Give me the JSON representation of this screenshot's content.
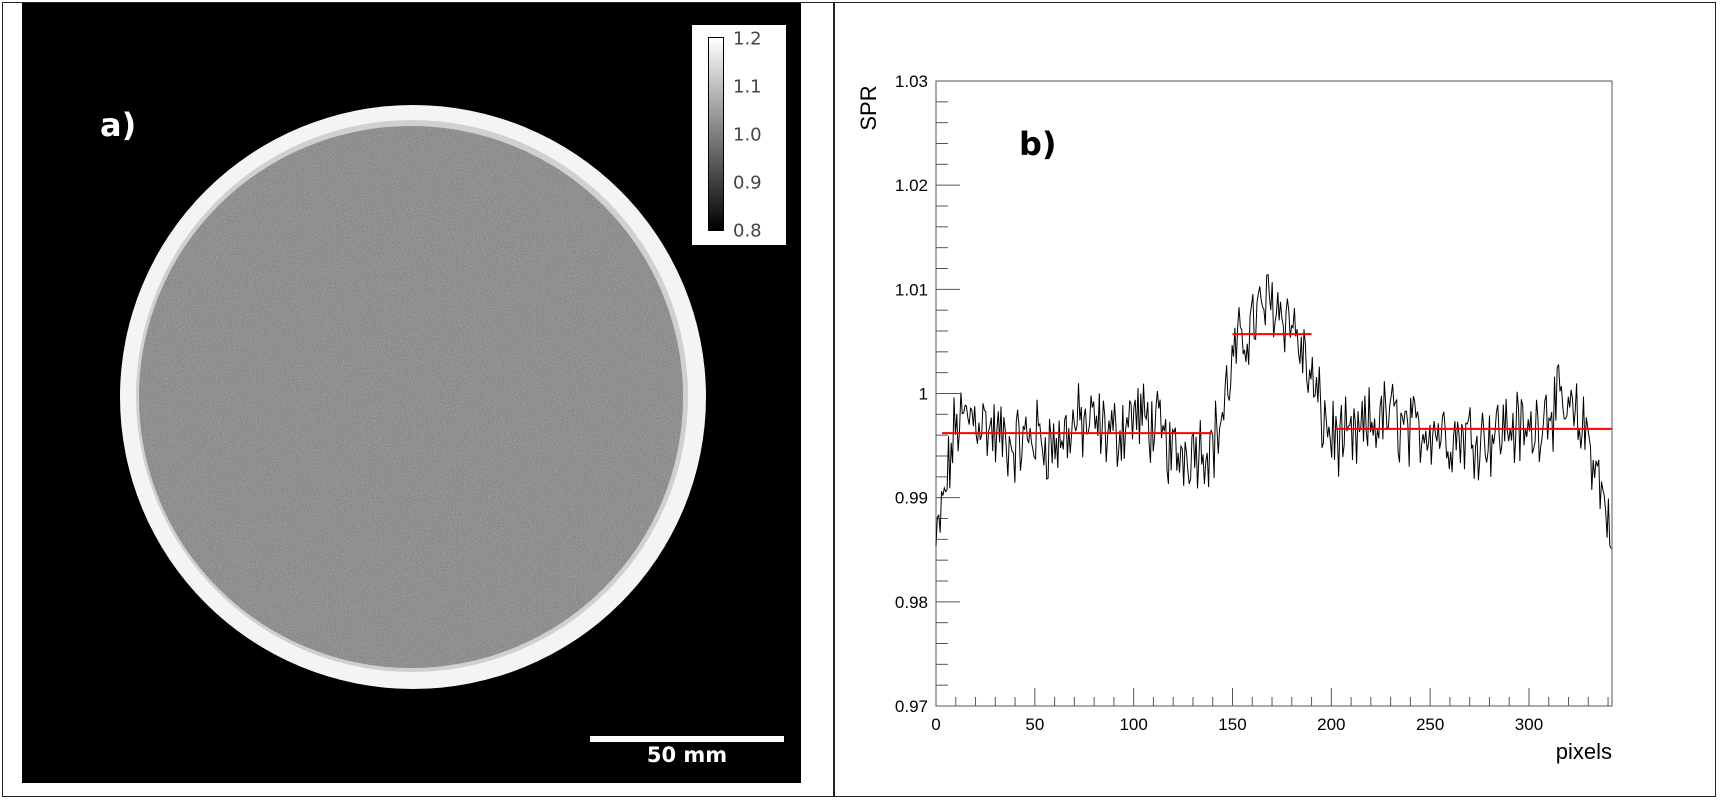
{
  "panel_a": {
    "label": "a)",
    "colorbar": {
      "ticks": [
        "1.2",
        "1.1",
        "1.0",
        "0.9",
        "0.8"
      ],
      "range": [
        0.8,
        1.2
      ]
    },
    "scale_bar": {
      "label": "50 mm"
    },
    "colors": {
      "background": "#000000",
      "ring": "#f2f2f2",
      "interior": "#808080"
    }
  },
  "panel_b": {
    "label": "b)",
    "chart_data": {
      "type": "line",
      "xlabel": "pixels",
      "ylabel": "SPR",
      "xlim": [
        0,
        342
      ],
      "ylim": [
        0.97,
        1.03
      ],
      "x_ticks": [
        "0",
        "50",
        "100",
        "150",
        "200",
        "250",
        "300"
      ],
      "y_ticks": [
        "0.97",
        "0.98",
        "0.99",
        "1",
        "1.01",
        "1.02",
        "1.03"
      ],
      "grid": false,
      "series": [
        {
          "color": "#000000",
          "x": [
            0,
            10,
            20,
            30,
            40,
            50,
            60,
            70,
            80,
            90,
            100,
            110,
            120,
            130,
            140,
            145,
            150,
            160,
            170,
            180,
            190,
            195,
            200,
            210,
            220,
            230,
            240,
            250,
            260,
            270,
            280,
            290,
            300,
            310,
            320,
            330,
            340
          ],
          "y": [
            0.985,
            0.997,
            0.998,
            0.996,
            0.995,
            0.996,
            0.995,
            0.997,
            0.997,
            0.996,
            0.998,
            0.997,
            0.994,
            0.995,
            0.995,
            0.998,
            1.003,
            1.007,
            1.009,
            1.007,
            1.001,
            0.998,
            0.996,
            0.995,
            0.997,
            0.998,
            0.996,
            0.997,
            0.996,
            0.996,
            0.996,
            0.997,
            0.996,
            0.999,
            0.998,
            0.996,
            0.988
          ]
        }
      ],
      "mean_segments": [
        {
          "color": "#ff0000",
          "x": [
            3,
            140
          ],
          "y": 0.9962
        },
        {
          "color": "#ff0000",
          "x": [
            150,
            190
          ],
          "y": 1.0057
        },
        {
          "color": "#ff0000",
          "x": [
            202,
            342
          ],
          "y": 0.9966
        }
      ]
    }
  }
}
